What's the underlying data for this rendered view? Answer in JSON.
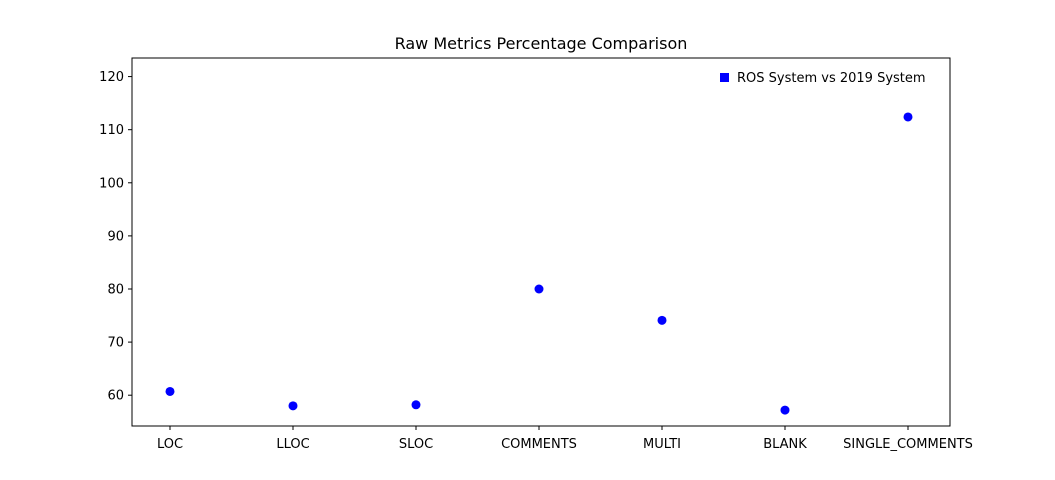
{
  "chart_data": {
    "type": "scatter",
    "title": "Raw Metrics Percentage Comparison",
    "xlabel": "",
    "ylabel": "",
    "categories": [
      "LOC",
      "LLOC",
      "SLOC",
      "COMMENTS",
      "MULTI",
      "BLANK",
      "SINGLE_COMMENTS"
    ],
    "series": [
      {
        "name": "ROS System vs 2019 System",
        "values": [
          60.7,
          58.0,
          58.2,
          80.0,
          74.1,
          57.2,
          112.4
        ],
        "color": "#0000ff",
        "marker": "circle"
      }
    ],
    "ylim": [
      54.2,
      123.5
    ],
    "yticks": [
      60,
      70,
      80,
      90,
      100,
      110,
      120
    ],
    "grid": false,
    "legend": {
      "placement": "top-right",
      "marker": "square"
    }
  }
}
